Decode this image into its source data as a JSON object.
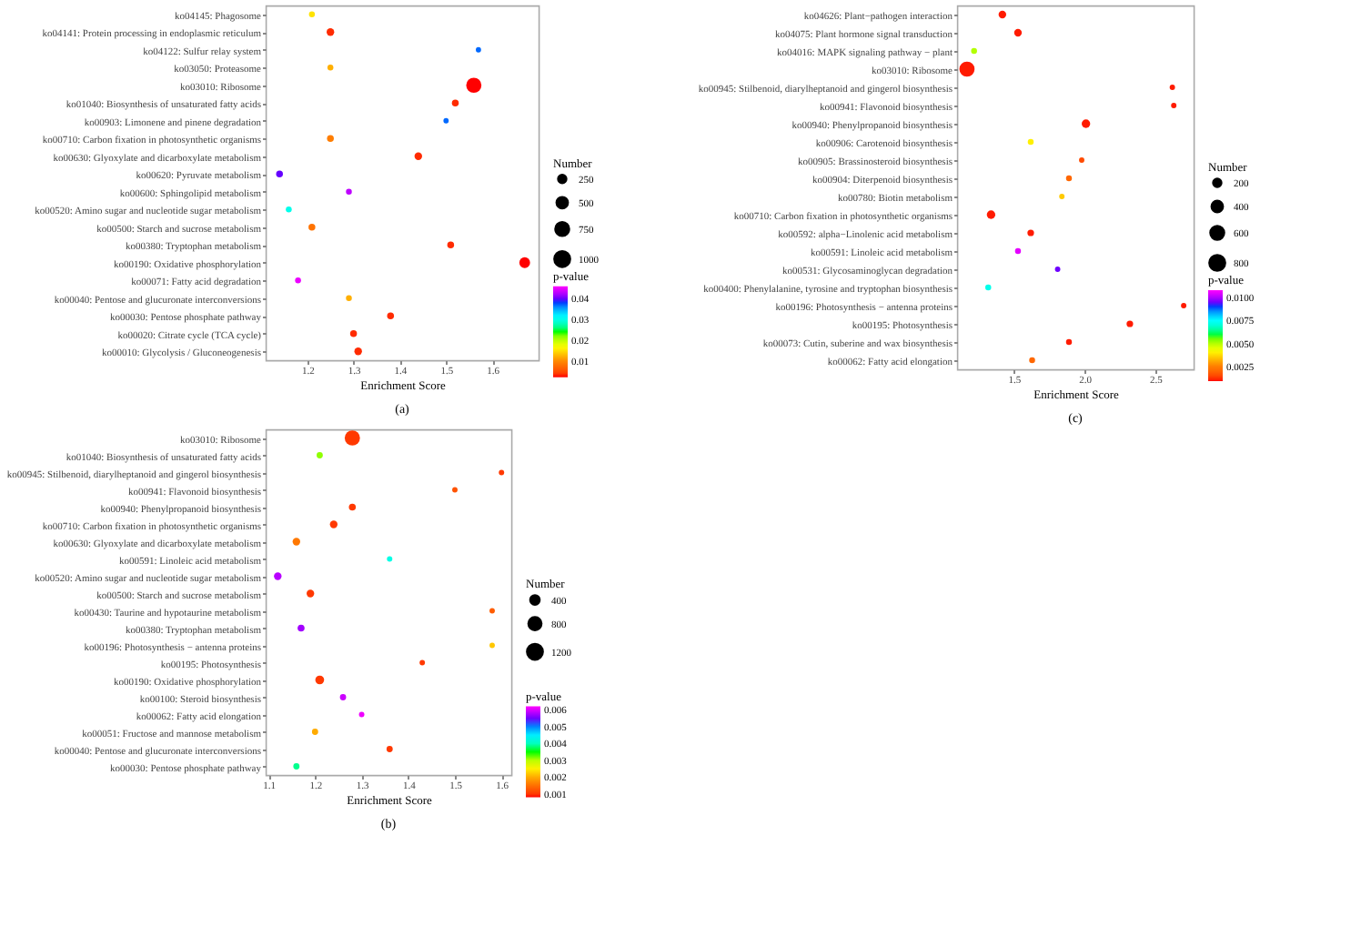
{
  "chart_data": [
    {
      "type": "bubble",
      "orientation": "horizontal",
      "xlabel": "Enrichment Score",
      "legend_title": "Number",
      "clabel": "p-value",
      "annotations": [
        "(a)"
      ],
      "categories": [
        "ko04145: Phagosome",
        "ko04141: Protein processing in endoplasmic reticulum",
        "ko04122: Sulfur relay system",
        "ko03050: Proteasome",
        "ko03010: Ribosome",
        "ko01040: Biosynthesis of unsaturated fatty acids",
        "ko00903: Limonene and pinene degradation",
        "ko00710: Carbon fixation in photosynthetic organisms",
        "ko00630: Glyoxylate and dicarboxylate metabolism",
        "ko00620: Pyruvate metabolism",
        "ko00600: Sphingolipid metabolism",
        "ko00520: Amino sugar and nucleotide sugar metabolism",
        "ko00500: Starch and sucrose metabolism",
        "ko00380: Tryptophan metabolism",
        "ko00190: Oxidative phosphorylation",
        "ko00071: Fatty acid degradation",
        "ko00040: Pentose and glucuronate interconversions",
        "ko00030: Pentose phosphate pathway",
        "ko00020: Citrate cycle (TCA cycle)",
        "ko00010: Glycolysis / Gluconeogenesis"
      ],
      "values": [
        1.21,
        1.25,
        1.57,
        1.25,
        1.56,
        1.52,
        1.5,
        1.25,
        1.44,
        1.14,
        1.29,
        1.16,
        1.21,
        1.51,
        1.67,
        1.18,
        1.29,
        1.38,
        1.3,
        1.31
      ],
      "sizes": [
        150,
        250,
        120,
        150,
        1000,
        200,
        120,
        200,
        250,
        200,
        150,
        150,
        200,
        200,
        500,
        150,
        150,
        200,
        200,
        250
      ],
      "cvalues": [
        0.015,
        0.003,
        0.037,
        0.012,
        0.002,
        0.003,
        0.037,
        0.009,
        0.003,
        0.04,
        0.043,
        0.03,
        0.008,
        0.003,
        0.002,
        0.045,
        0.012,
        0.003,
        0.003,
        0.003
      ],
      "size_legend": [
        250,
        500,
        750,
        1000
      ],
      "clim": [
        0.002,
        0.046
      ],
      "cticks": [
        0.01,
        0.02,
        0.03,
        0.04
      ],
      "xlim": [
        1.11,
        1.7
      ],
      "xticks": [
        1.2,
        1.3,
        1.4,
        1.5,
        1.6
      ]
    },
    {
      "type": "bubble",
      "orientation": "horizontal",
      "xlabel": "Enrichment Score",
      "legend_title": "Number",
      "clabel": "p-value",
      "annotations": [
        "(b)"
      ],
      "categories": [
        "ko03010: Ribosome",
        "ko01040: Biosynthesis of unsaturated fatty acids",
        "ko00945: Stilbenoid, diarylheptanoid and gingerol biosynthesis",
        "ko00941: Flavonoid biosynthesis",
        "ko00940: Phenylpropanoid biosynthesis",
        "ko00710: Carbon fixation in photosynthetic organisms",
        "ko00630: Glyoxylate and dicarboxylate metabolism",
        "ko00591: Linoleic acid metabolism",
        "ko00520: Amino sugar and nucleotide sugar metabolism",
        "ko00500: Starch and sucrose metabolism",
        "ko00430: Taurine and hypotaurine metabolism",
        "ko00380: Tryptophan metabolism",
        "ko00196: Photosynthesis − antenna proteins",
        "ko00195: Photosynthesis",
        "ko00190: Oxidative phosphorylation",
        "ko00100: Steroid biosynthesis",
        "ko00062: Fatty acid elongation",
        "ko00051: Fructose and mannose metabolism",
        "ko00040: Pentose and glucuronate interconversions",
        "ko00030: Pentose phosphate pathway"
      ],
      "values": [
        1.28,
        1.21,
        1.6,
        1.5,
        1.28,
        1.24,
        1.16,
        1.36,
        1.12,
        1.19,
        1.58,
        1.17,
        1.58,
        1.43,
        1.21,
        1.26,
        1.3,
        1.2,
        1.36,
        1.16
      ],
      "sizes": [
        1200,
        200,
        150,
        150,
        250,
        300,
        300,
        150,
        300,
        300,
        150,
        250,
        150,
        150,
        400,
        200,
        150,
        200,
        200,
        200
      ],
      "cvalues": [
        0.001,
        0.0032,
        0.001,
        0.0012,
        0.001,
        0.001,
        0.0016,
        0.0042,
        0.0058,
        0.001,
        0.0013,
        0.0057,
        0.0022,
        0.001,
        0.001,
        0.0059,
        0.0061,
        0.002,
        0.001,
        0.0038
      ],
      "size_legend": [
        400,
        800,
        1200
      ],
      "clim": [
        0.0008,
        0.0062
      ],
      "cticks": [
        0.001,
        0.002,
        0.003,
        0.004,
        0.005,
        0.006
      ],
      "xlim": [
        1.094,
        1.621
      ],
      "xticks": [
        1.1,
        1.2,
        1.3,
        1.4,
        1.5,
        1.6
      ]
    },
    {
      "type": "bubble",
      "orientation": "horizontal",
      "xlabel": "Enrichment Score",
      "legend_title": "Number",
      "clabel": "p-value",
      "annotations": [
        "(c)"
      ],
      "categories": [
        "ko04626: Plant−pathogen interaction",
        "ko04075: Plant hormone signal transduction",
        "ko04016: MAPK signaling pathway − plant",
        "ko03010: Ribosome",
        "ko00945: Stilbenoid, diarylheptanoid and gingerol biosynthesis",
        "ko00941: Flavonoid biosynthesis",
        "ko00940: Phenylpropanoid biosynthesis",
        "ko00906: Carotenoid biosynthesis",
        "ko00905: Brassinosteroid biosynthesis",
        "ko00904: Diterpenoid biosynthesis",
        "ko00780: Biotin metabolism",
        "ko00710: Carbon fixation in photosynthetic organisms",
        "ko00592: alpha−Linolenic acid metabolism",
        "ko00591: Linoleic acid metabolism",
        "ko00531: Glycosaminoglycan degradation",
        "ko00400: Phenylalanine, tyrosine and tryptophan biosynthesis",
        "ko00196: Photosynthesis − antenna proteins",
        "ko00195: Photosynthesis",
        "ko00073: Cutin, suberine and wax biosynthesis",
        "ko00062: Fatty acid elongation"
      ],
      "values": [
        1.42,
        1.53,
        1.22,
        1.17,
        2.62,
        2.63,
        2.01,
        1.62,
        1.98,
        1.89,
        1.84,
        1.34,
        1.62,
        1.53,
        1.81,
        1.32,
        2.7,
        2.32,
        1.89,
        1.63
      ],
      "sizes": [
        200,
        200,
        120,
        800,
        100,
        100,
        250,
        120,
        100,
        120,
        100,
        250,
        150,
        120,
        100,
        120,
        100,
        150,
        120,
        120
      ],
      "cvalues": [
        0.001,
        0.001,
        0.005,
        0.001,
        0.001,
        0.001,
        0.001,
        0.004,
        0.0015,
        0.002,
        0.0035,
        0.001,
        0.001,
        0.0105,
        0.0095,
        0.0072,
        0.001,
        0.001,
        0.001,
        0.002
      ],
      "size_legend": [
        200,
        400,
        600,
        800
      ],
      "clim": [
        0.0009,
        0.0108
      ],
      "cticks": [
        0.0025,
        {
          "value": 0.005,
          "label": "0.0050"
        },
        0.0075,
        {
          "value": 0.01,
          "label": "0.0100"
        }
      ],
      "xlim": [
        1.1,
        2.77
      ],
      "xticks": [
        1.5,
        {
          "value": 2,
          "label": "2.0"
        },
        2.5
      ]
    }
  ]
}
